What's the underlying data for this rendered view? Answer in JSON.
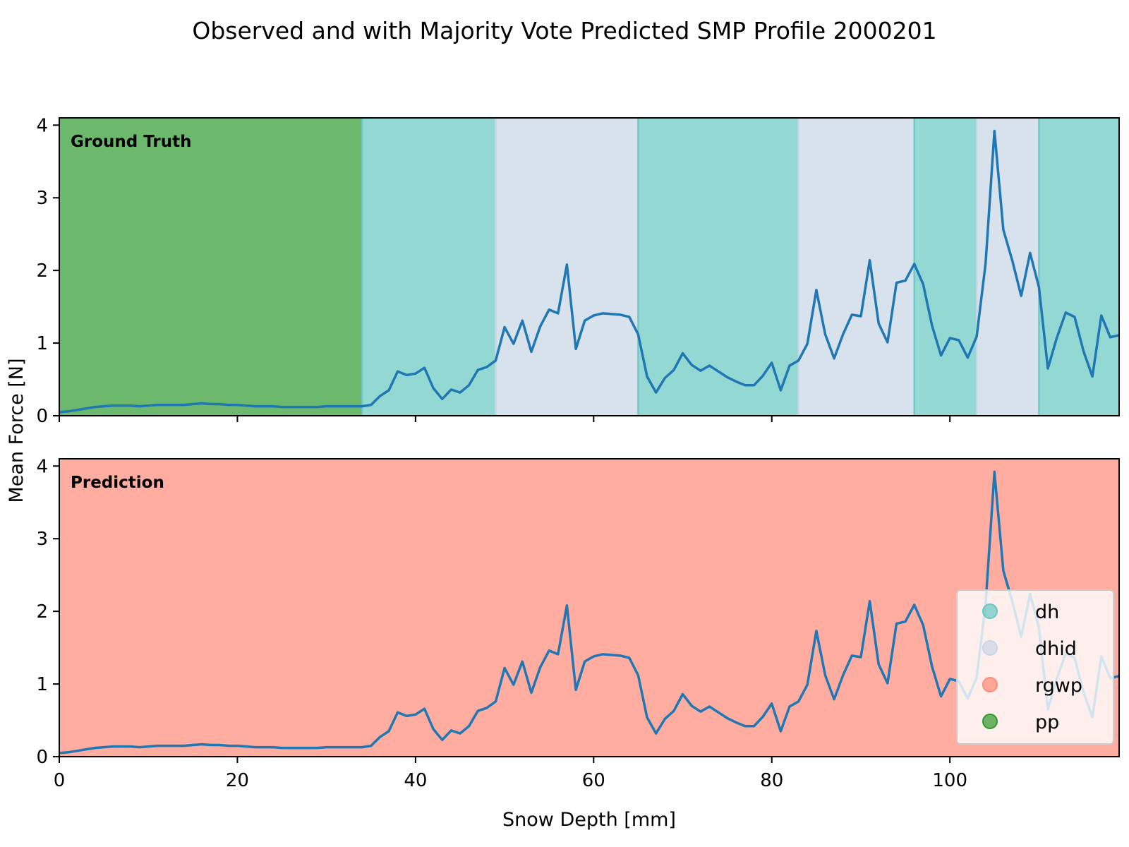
{
  "chart_data": {
    "type": "line",
    "title": "Observed and with Majority Vote Predicted SMP Profile 2000201",
    "xlabel": "Snow Depth [mm]",
    "ylabel": "Mean Force [N]",
    "xlim": [
      0,
      119
    ],
    "ylim": [
      0,
      4.1
    ],
    "x_ticks": [
      0,
      20,
      40,
      60,
      80,
      100
    ],
    "x_tick_labels": [
      "0",
      "20",
      "40",
      "60",
      "80",
      "100"
    ],
    "y_ticks": [
      0,
      1,
      2,
      3,
      4
    ],
    "y_tick_labels": [
      "0",
      "1",
      "2",
      "3",
      "4"
    ],
    "grid": false,
    "legend_position": "lower-right",
    "line_color": "#1f77b4",
    "legend": [
      {
        "label": "dh",
        "color": "#66c8c2"
      },
      {
        "label": "dhid",
        "color": "#c7d5e6"
      },
      {
        "label": "rgwp",
        "color": "#ff8a78"
      },
      {
        "label": "pp",
        "color": "#2e9a2e"
      }
    ],
    "series": {
      "x": [
        0,
        1,
        2,
        3,
        4,
        5,
        6,
        7,
        8,
        9,
        10,
        11,
        12,
        13,
        14,
        15,
        16,
        17,
        18,
        19,
        20,
        21,
        22,
        23,
        24,
        25,
        26,
        27,
        28,
        29,
        30,
        31,
        32,
        33,
        34,
        35,
        36,
        37,
        38,
        39,
        40,
        41,
        42,
        43,
        44,
        45,
        46,
        47,
        48,
        49,
        50,
        51,
        52,
        53,
        54,
        55,
        56,
        57,
        58,
        59,
        60,
        61,
        62,
        63,
        64,
        65,
        66,
        67,
        68,
        69,
        70,
        71,
        72,
        73,
        74,
        75,
        76,
        77,
        78,
        79,
        80,
        81,
        82,
        83,
        84,
        85,
        86,
        87,
        88,
        89,
        90,
        91,
        92,
        93,
        94,
        95,
        96,
        97,
        98,
        99,
        100,
        101,
        102,
        103,
        104,
        105,
        106,
        107,
        108,
        109,
        110,
        111,
        112,
        113,
        114,
        115,
        116,
        117,
        118,
        119
      ],
      "y": [
        0.05,
        0.06,
        0.08,
        0.1,
        0.12,
        0.13,
        0.14,
        0.14,
        0.14,
        0.13,
        0.14,
        0.15,
        0.15,
        0.15,
        0.15,
        0.16,
        0.17,
        0.16,
        0.16,
        0.15,
        0.15,
        0.14,
        0.13,
        0.13,
        0.13,
        0.12,
        0.12,
        0.12,
        0.12,
        0.12,
        0.13,
        0.13,
        0.13,
        0.13,
        0.13,
        0.15,
        0.27,
        0.35,
        0.61,
        0.56,
        0.58,
        0.66,
        0.38,
        0.23,
        0.36,
        0.32,
        0.42,
        0.63,
        0.67,
        0.76,
        1.22,
        0.99,
        1.31,
        0.88,
        1.23,
        1.46,
        1.41,
        2.08,
        0.92,
        1.31,
        1.38,
        1.41,
        1.4,
        1.39,
        1.36,
        1.12,
        0.54,
        0.32,
        0.52,
        0.63,
        0.86,
        0.7,
        0.62,
        0.69,
        0.61,
        0.53,
        0.47,
        0.42,
        0.42,
        0.55,
        0.73,
        0.35,
        0.69,
        0.76,
        0.99,
        1.73,
        1.12,
        0.79,
        1.12,
        1.39,
        1.37,
        2.14,
        1.27,
        1.01,
        1.83,
        1.86,
        2.09,
        1.81,
        1.24,
        0.83,
        1.07,
        1.04,
        0.8,
        1.09,
        2.09,
        3.92,
        2.56,
        2.14,
        1.65,
        2.24,
        1.77,
        0.65,
        1.07,
        1.42,
        1.36,
        0.89,
        0.54,
        1.38,
        1.08,
        1.11
      ]
    },
    "panels": [
      {
        "label": "Ground Truth",
        "segments": [
          {
            "start": 0,
            "end": 34,
            "class": "pp"
          },
          {
            "start": 34,
            "end": 49,
            "class": "dh"
          },
          {
            "start": 49,
            "end": 65,
            "class": "dhid"
          },
          {
            "start": 65,
            "end": 83,
            "class": "dh"
          },
          {
            "start": 83,
            "end": 96,
            "class": "dhid"
          },
          {
            "start": 96,
            "end": 103,
            "class": "dh"
          },
          {
            "start": 103,
            "end": 110,
            "class": "dhid"
          },
          {
            "start": 110,
            "end": 119,
            "class": "dh"
          }
        ]
      },
      {
        "label": "Prediction",
        "segments": [
          {
            "start": 0,
            "end": 119,
            "class": "rgwp"
          }
        ]
      }
    ]
  }
}
